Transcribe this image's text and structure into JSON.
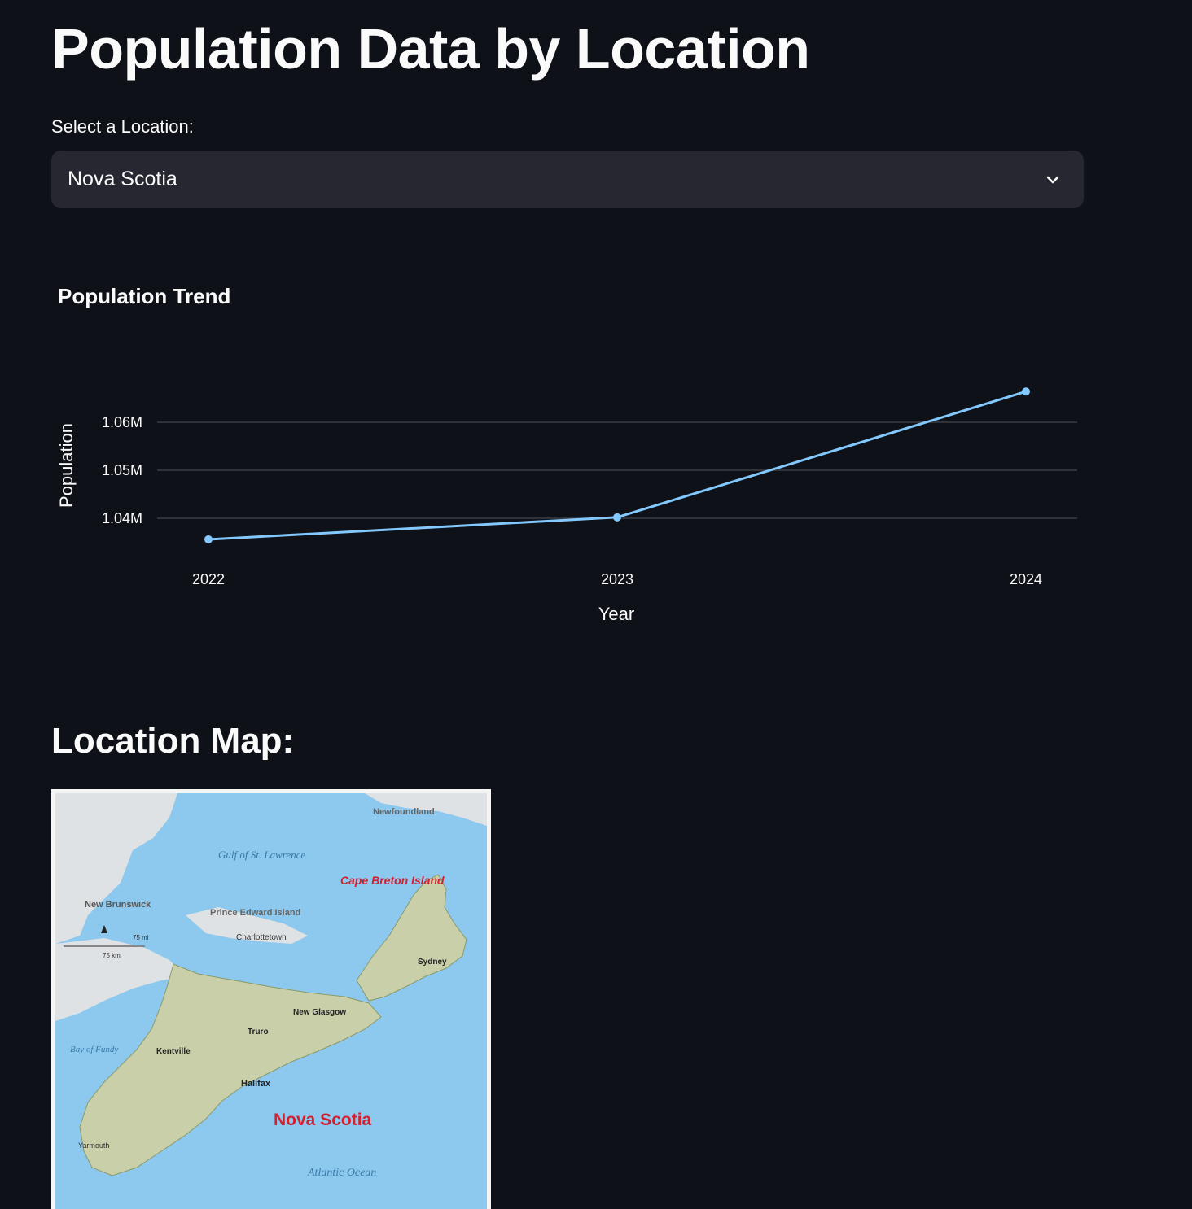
{
  "page": {
    "title": "Population Data by Location"
  },
  "selector": {
    "label": "Select a Location:",
    "selected": "Nova Scotia",
    "icon": "chevron-down-icon"
  },
  "chart_data": {
    "type": "line",
    "title": "Population Trend",
    "xlabel": "Year",
    "ylabel": "Population",
    "x": [
      "2022",
      "2023",
      "2024"
    ],
    "values": [
      1035600,
      1040200,
      1066400
    ],
    "y_ticks": [
      {
        "value": 1040000,
        "label": "1.04M"
      },
      {
        "value": 1050000,
        "label": "1.05M"
      },
      {
        "value": 1060000,
        "label": "1.06M"
      }
    ],
    "ylim": [
      1030000,
      1070000
    ],
    "grid": true,
    "line_color": "#83c9ff"
  },
  "map_section": {
    "heading": "Location Map:",
    "map": {
      "title": "Nova Scotia",
      "labels": {
        "newfoundland": "Newfoundland",
        "gulf": "Gulf of St. Lawrence",
        "new_brunswick": "New Brunswick",
        "pei": "Prince Edward Island",
        "charlottetown": "Charlottetown",
        "cape_breton": "Cape Breton Island",
        "sydney": "Sydney",
        "halifax": "Halifax",
        "truro": "Truro",
        "new_glasgow": "New Glasgow",
        "kentville": "Kentville",
        "yarmouth": "Yarmouth",
        "atlantic": "Atlantic Ocean",
        "bay_of_fundy": "Bay of Fundy",
        "scale_mi": "75 mi",
        "scale_km": "75 km"
      },
      "colors": {
        "water": "#8dc8ee",
        "land": "#c9cfa8",
        "other_land": "#dfe2e4",
        "title": "#d3202f"
      }
    }
  }
}
